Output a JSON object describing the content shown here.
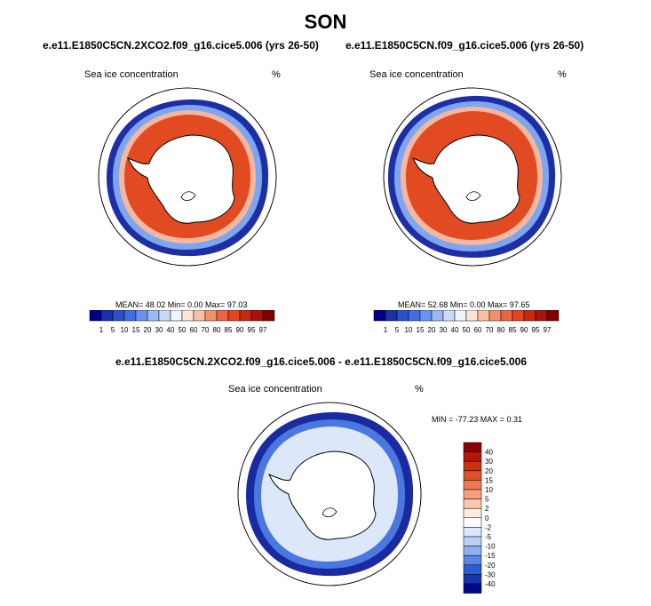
{
  "title": "SON",
  "panels": [
    {
      "case_title": "e.e11.E1850C5CN.2XCO2.f09_g16.cice5.006 (yrs 26-50)",
      "variable": "Sea ice concentration",
      "units": "%",
      "stats": "MEAN=  48.02  Min=   0.00  Max=  97.03"
    },
    {
      "case_title": "e.e11.E1850C5CN.f09_g16.cice5.006 (yrs 26-50)",
      "variable": "Sea ice concentration",
      "units": "%",
      "stats": "MEAN=  52.68  Min=   0.00  Max=  97.65"
    }
  ],
  "colorbar_labels": [
    "1",
    "5",
    "10",
    "15",
    "20",
    "30",
    "40",
    "50",
    "60",
    "70",
    "80",
    "85",
    "90",
    "95",
    "97"
  ],
  "colorbar_colors": [
    "#00008b",
    "#1a2fa8",
    "#2b50c8",
    "#3d6fe0",
    "#6a95ee",
    "#9ab9f4",
    "#c8dcfa",
    "#eef4fc",
    "#fde4d4",
    "#f9c0a2",
    "#f3906c",
    "#ec6440",
    "#e44420",
    "#c82a10",
    "#a8140a",
    "#800000"
  ],
  "diff_panel": {
    "title": "e.e11.E1850C5CN.2XCO2.f09_g16.cice5.006 - e.e11.E1850C5CN.f09_g16.cice5.006",
    "variable": "Sea ice concentration",
    "units": "%",
    "minmax": "MIN = -77.23 MAX =   0.31",
    "colorbar_labels": [
      "40",
      "30",
      "20",
      "15",
      "10",
      "5",
      "2",
      "0",
      "-2",
      "-5",
      "-10",
      "-15",
      "-20",
      "-30",
      "-40"
    ],
    "colorbar_colors": [
      "#8b0000",
      "#b01808",
      "#cc3010",
      "#e05028",
      "#ec7a50",
      "#f4a07c",
      "#f9c8aa",
      "#fdebe0",
      "#ffffff",
      "#dce8fa",
      "#b8d0f6",
      "#8cb0f0",
      "#5a86e6",
      "#2e5cd4",
      "#1636b0",
      "#00088a"
    ]
  }
}
